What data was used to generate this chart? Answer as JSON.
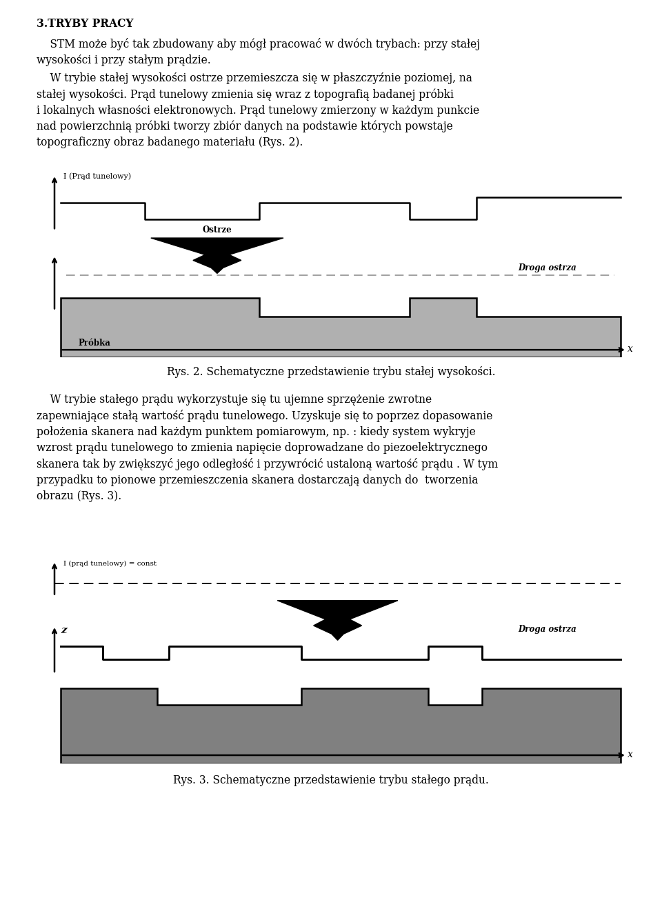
{
  "bg_color": "#ffffff",
  "fig_width": 9.6,
  "fig_height": 13.18,
  "title": "3.TRYBY PRACY",
  "caption2": "Rys. 2. Schematyczne przedstawienie trybu stałej wysokości.",
  "caption3": "Rys. 3. Schematyczne przedstawienie trybu stałego prądu.",
  "gray_color": "#b0b0b0",
  "dark_gray": "#808080",
  "dashed_color": "#999999",
  "lw_main": 1.8
}
